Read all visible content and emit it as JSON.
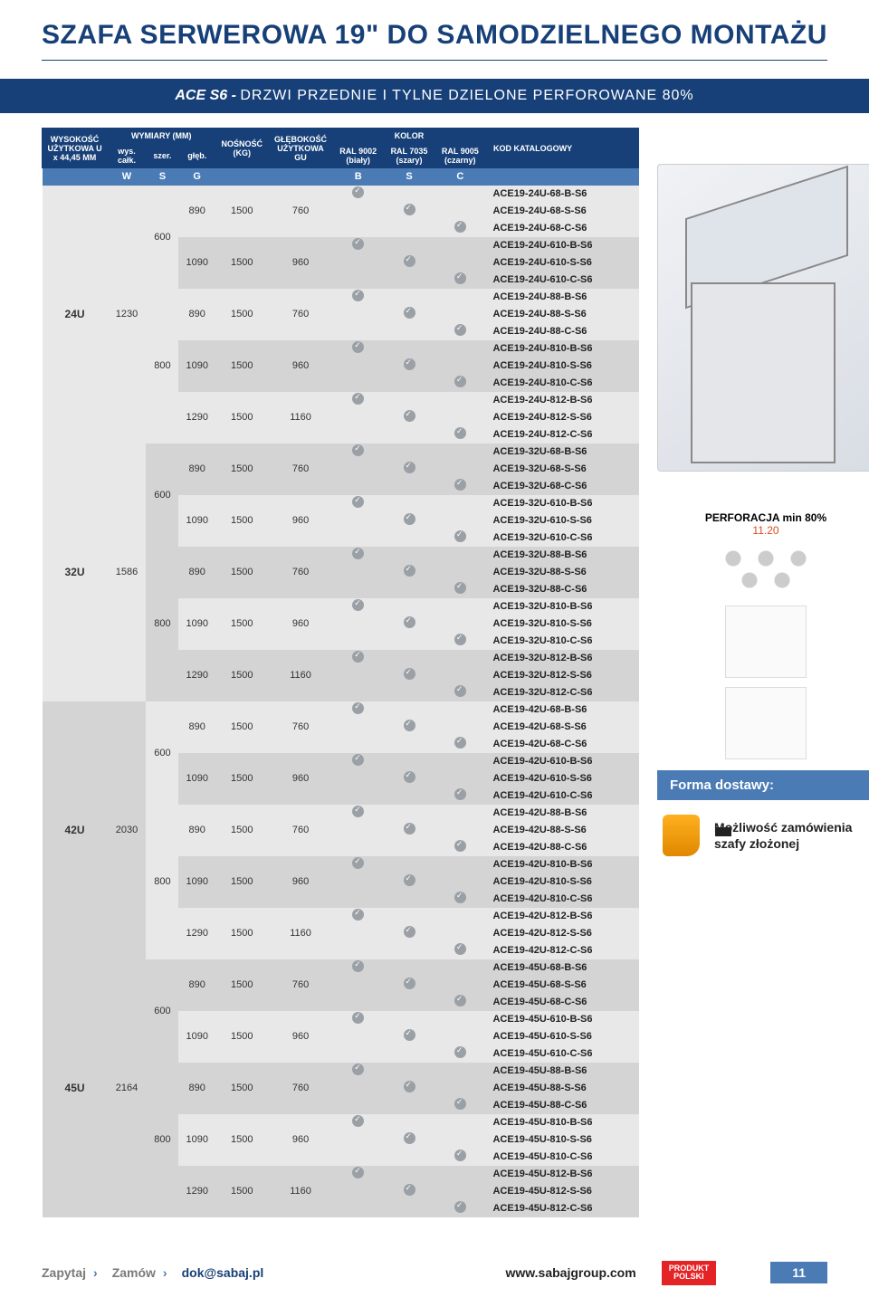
{
  "title": "SZAFA SERWEROWA 19\" DO SAMODZIELNEGO MONTAŻU",
  "subtitle_bold": "ACE S6 - ",
  "subtitle_rest": "DRZWI PRZEDNIE I TYLNE DZIELONE PERFOROWANE 80%",
  "headers": {
    "height": "WYSOKOŚĆ UŻYTKOWA U x 44,45 MM",
    "dims": "WYMIARY (MM)",
    "wys": "wys. całk.",
    "szer": "szer.",
    "gleb": "głęb.",
    "load": "NOŚNOŚĆ (KG)",
    "gu": "GŁĘBOKOŚĆ UŻYTKOWA GU",
    "color": "KOLOR",
    "ral_b": "RAL 9002 (biały)",
    "ral_s": "RAL 7035 (szary)",
    "ral_c": "RAL 9005 (czarny)",
    "code": "KOD KATALOGOWY",
    "W": "W",
    "S": "S",
    "G": "G",
    "B": "B",
    "Sc": "S",
    "C": "C"
  },
  "groups": [
    {
      "u": "24U",
      "h": "1230",
      "widths": [
        {
          "w": "600",
          "depths": [
            {
              "g": "890",
              "load": "1500",
              "gu": "760",
              "codes": [
                "ACE19-24U-68-B-S6",
                "ACE19-24U-68-S-S6",
                "ACE19-24U-68-C-S6"
              ]
            },
            {
              "g": "1090",
              "load": "1500",
              "gu": "960",
              "codes": [
                "ACE19-24U-610-B-S6",
                "ACE19-24U-610-S-S6",
                "ACE19-24U-610-C-S6"
              ]
            }
          ]
        },
        {
          "w": "800",
          "depths": [
            {
              "g": "890",
              "load": "1500",
              "gu": "760",
              "codes": [
                "ACE19-24U-88-B-S6",
                "ACE19-24U-88-S-S6",
                "ACE19-24U-88-C-S6"
              ]
            },
            {
              "g": "1090",
              "load": "1500",
              "gu": "960",
              "codes": [
                "ACE19-24U-810-B-S6",
                "ACE19-24U-810-S-S6",
                "ACE19-24U-810-C-S6"
              ]
            },
            {
              "g": "1290",
              "load": "1500",
              "gu": "1160",
              "codes": [
                "ACE19-24U-812-B-S6",
                "ACE19-24U-812-S-S6",
                "ACE19-24U-812-C-S6"
              ]
            }
          ]
        }
      ]
    },
    {
      "u": "32U",
      "h": "1586",
      "widths": [
        {
          "w": "600",
          "depths": [
            {
              "g": "890",
              "load": "1500",
              "gu": "760",
              "codes": [
                "ACE19-32U-68-B-S6",
                "ACE19-32U-68-S-S6",
                "ACE19-32U-68-C-S6"
              ]
            },
            {
              "g": "1090",
              "load": "1500",
              "gu": "960",
              "codes": [
                "ACE19-32U-610-B-S6",
                "ACE19-32U-610-S-S6",
                "ACE19-32U-610-C-S6"
              ]
            }
          ]
        },
        {
          "w": "800",
          "depths": [
            {
              "g": "890",
              "load": "1500",
              "gu": "760",
              "codes": [
                "ACE19-32U-88-B-S6",
                "ACE19-32U-88-S-S6",
                "ACE19-32U-88-C-S6"
              ]
            },
            {
              "g": "1090",
              "load": "1500",
              "gu": "960",
              "codes": [
                "ACE19-32U-810-B-S6",
                "ACE19-32U-810-S-S6",
                "ACE19-32U-810-C-S6"
              ]
            },
            {
              "g": "1290",
              "load": "1500",
              "gu": "1160",
              "codes": [
                "ACE19-32U-812-B-S6",
                "ACE19-32U-812-S-S6",
                "ACE19-32U-812-C-S6"
              ]
            }
          ]
        }
      ]
    },
    {
      "u": "42U",
      "h": "2030",
      "widths": [
        {
          "w": "600",
          "depths": [
            {
              "g": "890",
              "load": "1500",
              "gu": "760",
              "codes": [
                "ACE19-42U-68-B-S6",
                "ACE19-42U-68-S-S6",
                "ACE19-42U-68-C-S6"
              ]
            },
            {
              "g": "1090",
              "load": "1500",
              "gu": "960",
              "codes": [
                "ACE19-42U-610-B-S6",
                "ACE19-42U-610-S-S6",
                "ACE19-42U-610-C-S6"
              ]
            }
          ]
        },
        {
          "w": "800",
          "depths": [
            {
              "g": "890",
              "load": "1500",
              "gu": "760",
              "codes": [
                "ACE19-42U-88-B-S6",
                "ACE19-42U-88-S-S6",
                "ACE19-42U-88-C-S6"
              ]
            },
            {
              "g": "1090",
              "load": "1500",
              "gu": "960",
              "codes": [
                "ACE19-42U-810-B-S6",
                "ACE19-42U-810-S-S6",
                "ACE19-42U-810-C-S6"
              ]
            },
            {
              "g": "1290",
              "load": "1500",
              "gu": "1160",
              "codes": [
                "ACE19-42U-812-B-S6",
                "ACE19-42U-812-S-S6",
                "ACE19-42U-812-C-S6"
              ]
            }
          ]
        }
      ]
    },
    {
      "u": "45U",
      "h": "2164",
      "widths": [
        {
          "w": "600",
          "depths": [
            {
              "g": "890",
              "load": "1500",
              "gu": "760",
              "codes": [
                "ACE19-45U-68-B-S6",
                "ACE19-45U-68-S-S6",
                "ACE19-45U-68-C-S6"
              ]
            },
            {
              "g": "1090",
              "load": "1500",
              "gu": "960",
              "codes": [
                "ACE19-45U-610-B-S6",
                "ACE19-45U-610-S-S6",
                "ACE19-45U-610-C-S6"
              ]
            }
          ]
        },
        {
          "w": "800",
          "depths": [
            {
              "g": "890",
              "load": "1500",
              "gu": "760",
              "codes": [
                "ACE19-45U-88-B-S6",
                "ACE19-45U-88-S-S6",
                "ACE19-45U-88-C-S6"
              ]
            },
            {
              "g": "1090",
              "load": "1500",
              "gu": "960",
              "codes": [
                "ACE19-45U-810-B-S6",
                "ACE19-45U-810-S-S6",
                "ACE19-45U-810-C-S6"
              ]
            },
            {
              "g": "1290",
              "load": "1500",
              "gu": "1160",
              "codes": [
                "ACE19-45U-812-B-S6",
                "ACE19-45U-812-S-S6",
                "ACE19-45U-812-C-S6"
              ]
            }
          ]
        }
      ]
    }
  ],
  "side": {
    "perf_label": "PERFORACJA min 80%",
    "perf_num": "11.20",
    "forma_title": "Forma dostawy:",
    "forma_text": "Możliwość zamówienia szafy złożonej"
  },
  "footer": {
    "ask": "Zapytaj",
    "order": "Zamów",
    "email": "dok@sabaj.pl",
    "site": "www.sabajgroup.com",
    "badge1": "PRODUKT",
    "badge2": "POLSKI",
    "page": "11"
  },
  "colors": {
    "primary": "#174078",
    "accent": "#4a7bb5",
    "row_a": "#e8e8e8",
    "row_b": "#d4d4d4",
    "badge": "#e42326",
    "perf_orange": "#d84c1e"
  }
}
